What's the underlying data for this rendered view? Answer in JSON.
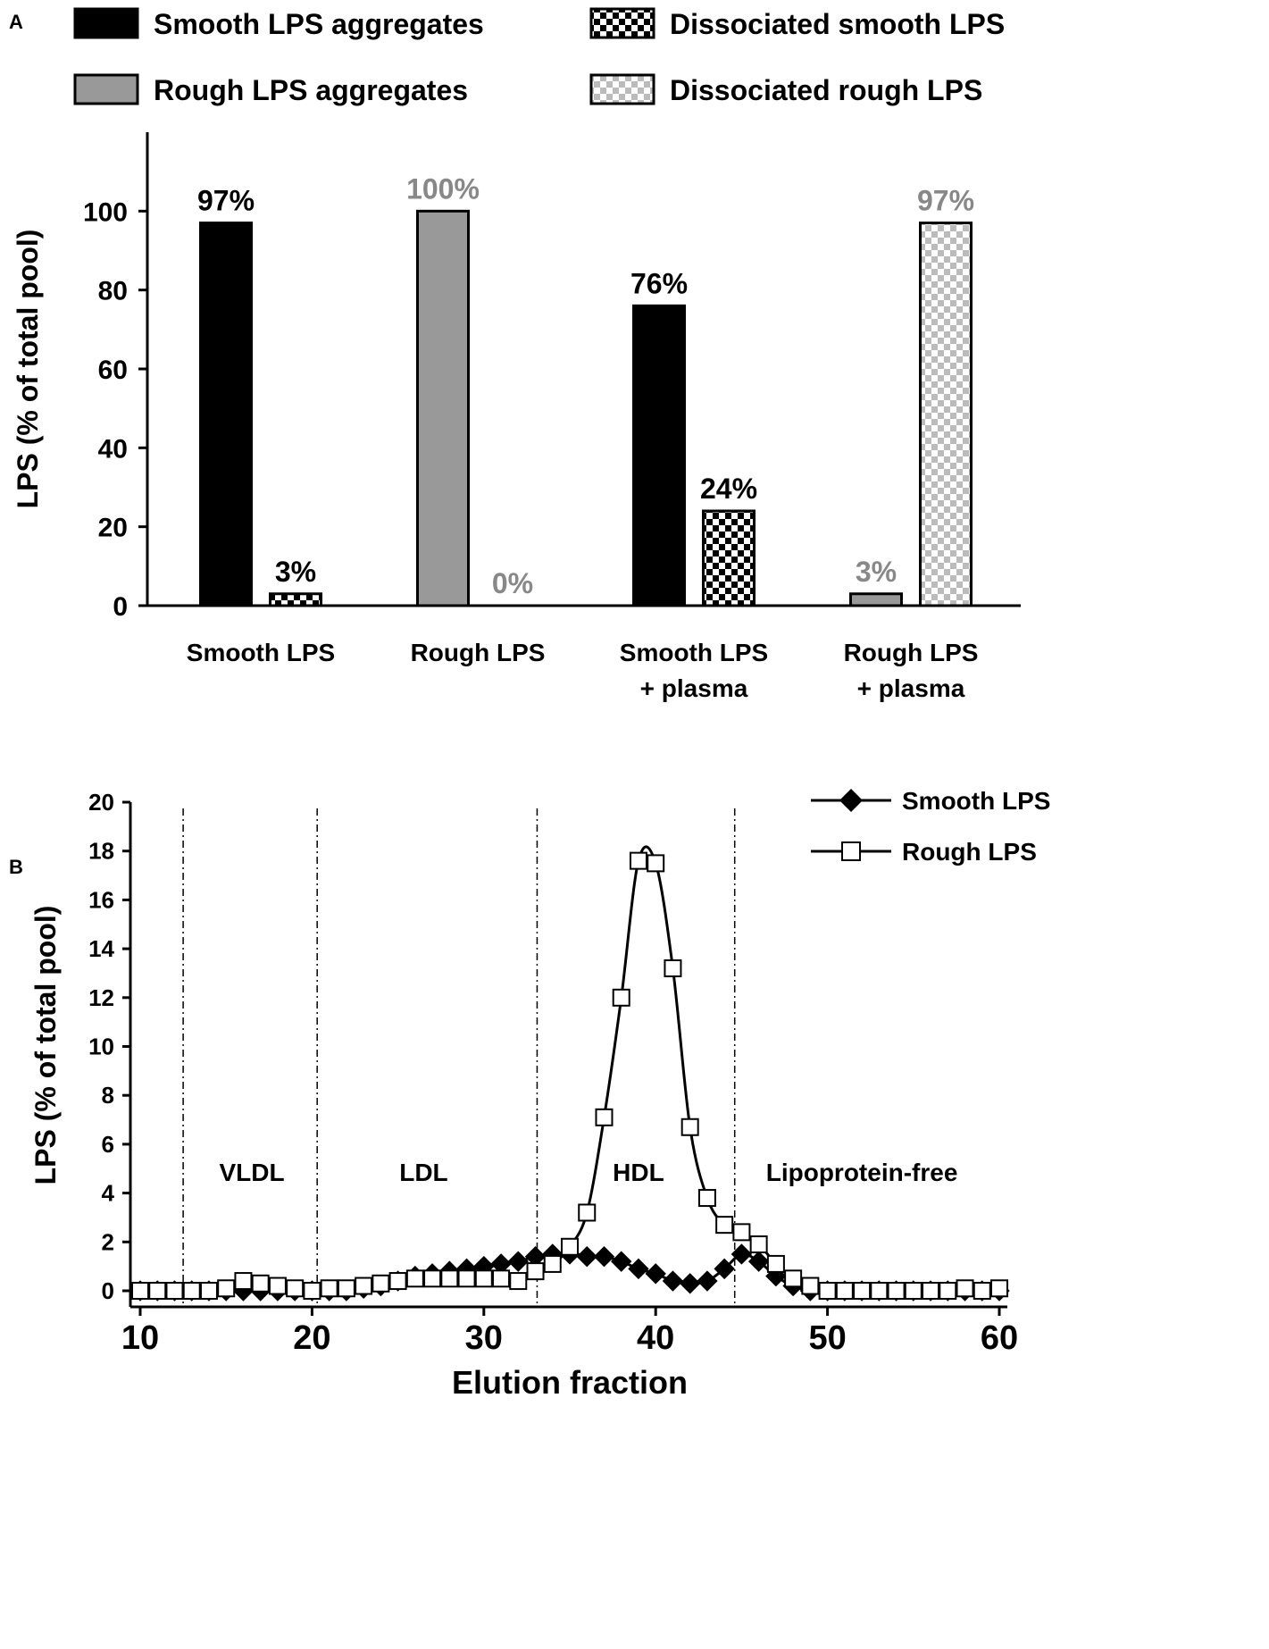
{
  "chart_data": [
    {
      "panel": "A",
      "type": "bar",
      "ylabel": "LPS (% of total pool)",
      "ylim": [
        0,
        120
      ],
      "yticks": [
        0,
        20,
        40,
        60,
        80,
        100
      ],
      "legend": [
        {
          "key": "smooth_agg",
          "label": "Smooth LPS aggregates"
        },
        {
          "key": "diss_smooth",
          "label": "Dissociated smooth LPS"
        },
        {
          "key": "rough_agg",
          "label": "Rough LPS aggregates"
        },
        {
          "key": "diss_rough",
          "label": "Dissociated rough LPS"
        }
      ],
      "groups": [
        {
          "label": [
            "Smooth LPS"
          ],
          "bars": [
            {
              "series": "smooth_agg",
              "value": 97,
              "label": "97%",
              "label_color": "#000000"
            },
            {
              "series": "diss_smooth",
              "value": 3,
              "label": "3%",
              "label_color": "#000000"
            }
          ]
        },
        {
          "label": [
            "Rough LPS"
          ],
          "bars": [
            {
              "series": "rough_agg",
              "value": 100,
              "label": "100%",
              "label_color": "#888888"
            },
            {
              "series": "diss_rough",
              "value": 0,
              "label": "0%",
              "label_color": "#888888"
            }
          ]
        },
        {
          "label": [
            "Smooth LPS",
            "+ plasma"
          ],
          "bars": [
            {
              "series": "smooth_agg",
              "value": 76,
              "label": "76%",
              "label_color": "#000000"
            },
            {
              "series": "diss_smooth",
              "value": 24,
              "label": "24%",
              "label_color": "#000000"
            }
          ]
        },
        {
          "label": [
            "Rough LPS",
            "+ plasma"
          ],
          "bars": [
            {
              "series": "rough_agg",
              "value": 3,
              "label": "3%",
              "label_color": "#888888"
            },
            {
              "series": "diss_rough",
              "value": 97,
              "label": "97%",
              "label_color": "#888888"
            }
          ]
        }
      ],
      "colors": {
        "smooth_agg": "#000000",
        "rough_agg": "#999999",
        "dark_check": "#000000",
        "light_check": "#bbbbbb"
      }
    },
    {
      "panel": "B",
      "type": "line",
      "xlabel": "Elution fraction",
      "ylabel": "LPS (% of total pool)",
      "xlim": [
        10,
        60
      ],
      "ylim": [
        0,
        20
      ],
      "xticks": [
        10,
        20,
        30,
        40,
        50,
        60
      ],
      "yticks": [
        0,
        2,
        4,
        6,
        8,
        10,
        12,
        14,
        16,
        18,
        20
      ],
      "regions": [
        {
          "label": "VLDL",
          "x": 16.5
        },
        {
          "label": "LDL",
          "x": 26.5
        },
        {
          "label": "HDL",
          "x": 39
        },
        {
          "label": "Lipoprotein-free",
          "x": 52
        }
      ],
      "dividers": [
        12.5,
        20.3,
        33.1,
        44.6
      ],
      "series": [
        {
          "name": "Smooth LPS",
          "marker": "diamond",
          "x": [
            10,
            11,
            12,
            13,
            14,
            15,
            16,
            17,
            18,
            19,
            20,
            21,
            22,
            23,
            24,
            25,
            26,
            27,
            28,
            29,
            30,
            31,
            32,
            33,
            34,
            35,
            36,
            37,
            38,
            39,
            40,
            41,
            42,
            43,
            44,
            45,
            46,
            47,
            48,
            49,
            50,
            51,
            52,
            53,
            54,
            55,
            56,
            57,
            58,
            59,
            60
          ],
          "y": [
            0,
            0,
            0,
            0,
            0,
            0,
            0,
            0,
            0,
            0,
            0,
            0,
            0,
            0.1,
            0.2,
            0.4,
            0.6,
            0.7,
            0.8,
            0.9,
            1.0,
            1.1,
            1.2,
            1.4,
            1.5,
            1.5,
            1.4,
            1.4,
            1.2,
            0.9,
            0.7,
            0.4,
            0.3,
            0.4,
            0.9,
            1.5,
            1.2,
            0.6,
            0.2,
            0,
            0,
            0,
            0,
            0,
            0,
            0,
            0,
            0,
            0,
            0,
            0
          ]
        },
        {
          "name": "Rough LPS",
          "marker": "square",
          "x": [
            10,
            11,
            12,
            13,
            14,
            15,
            16,
            17,
            18,
            19,
            20,
            21,
            22,
            23,
            24,
            25,
            26,
            27,
            28,
            29,
            30,
            31,
            32,
            33,
            34,
            35,
            36,
            37,
            38,
            39,
            40,
            41,
            42,
            43,
            44,
            45,
            46,
            47,
            48,
            49,
            50,
            51,
            52,
            53,
            54,
            55,
            56,
            57,
            58,
            59,
            60
          ],
          "y": [
            0,
            0,
            0,
            0,
            0,
            0.1,
            0.4,
            0.3,
            0.2,
            0.1,
            0,
            0.1,
            0.1,
            0.2,
            0.3,
            0.4,
            0.5,
            0.5,
            0.5,
            0.5,
            0.5,
            0.5,
            0.4,
            0.8,
            1.1,
            1.8,
            3.2,
            7.1,
            12.0,
            17.6,
            17.5,
            13.2,
            6.7,
            3.8,
            2.7,
            2.4,
            1.9,
            1.1,
            0.5,
            0.2,
            0,
            0,
            0,
            0,
            0,
            0,
            0,
            0,
            0.1,
            0,
            0.1
          ]
        }
      ]
    }
  ],
  "panel_labels": {
    "a": "A",
    "b": "B"
  }
}
